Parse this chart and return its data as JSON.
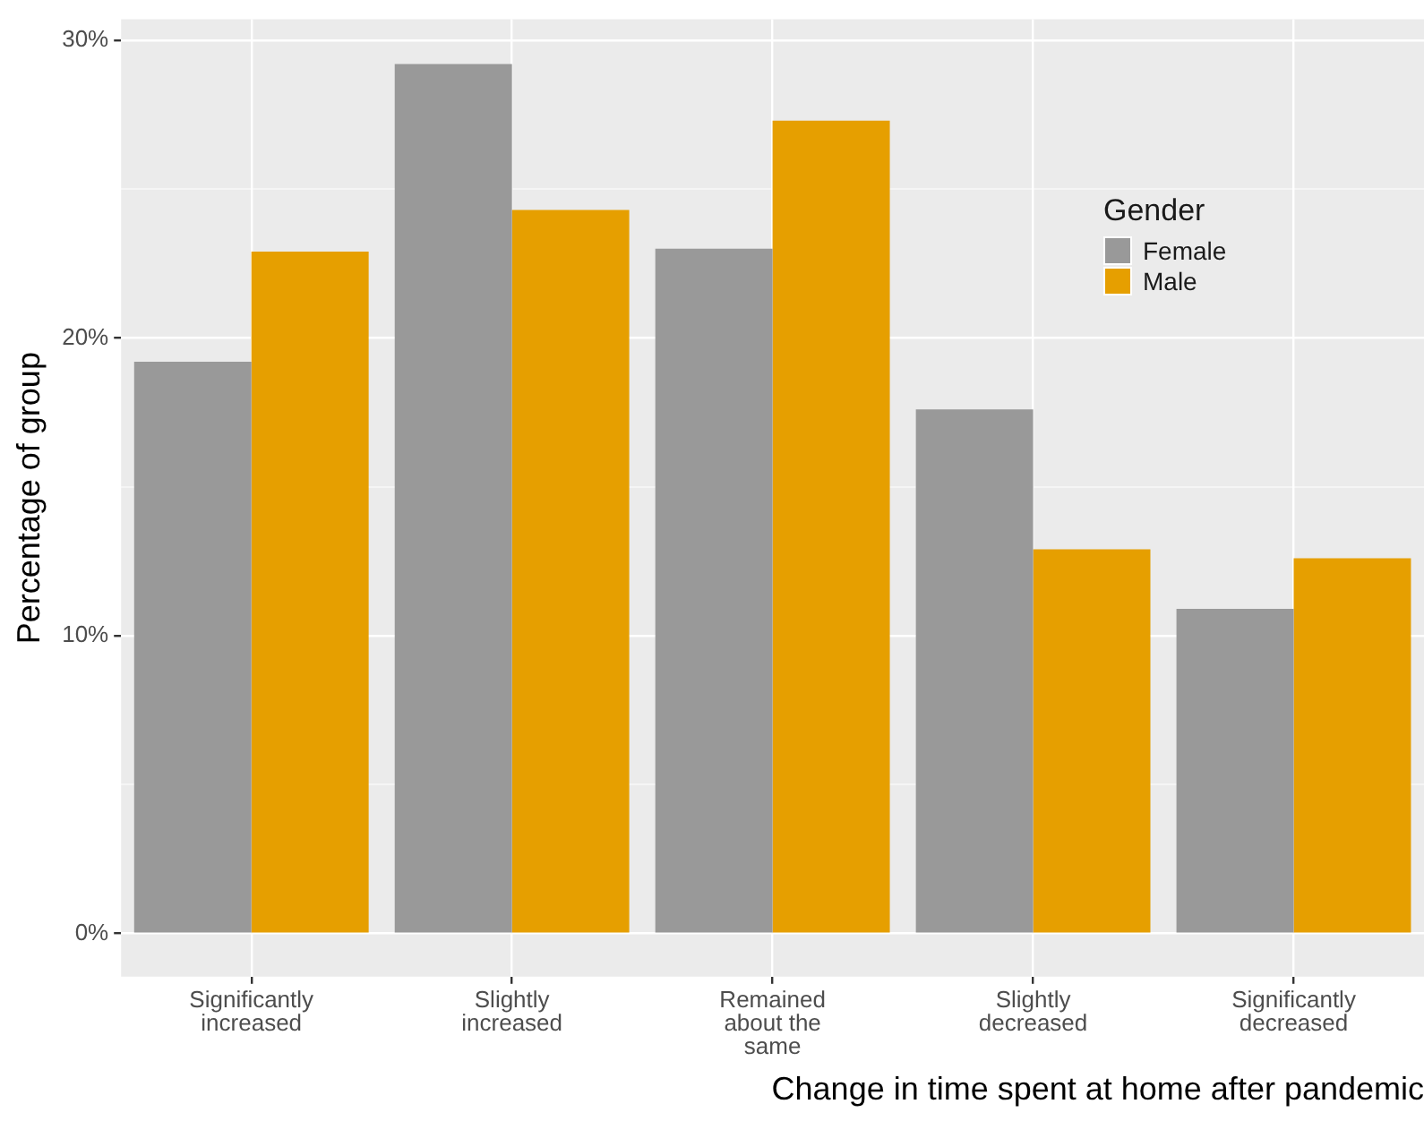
{
  "chart_data": {
    "type": "bar",
    "xlabel": "Change in time spent at home after pandemic",
    "ylabel": "Percentage of group",
    "legend_title": "Gender",
    "categories": [
      "Significantly increased",
      "Slightly increased",
      "Remained about the same",
      "Slightly decreased",
      "Significantly decreased"
    ],
    "series": [
      {
        "name": "Female",
        "color": "#999999",
        "values": [
          19.2,
          29.2,
          23.0,
          17.6,
          10.9
        ]
      },
      {
        "name": "Male",
        "color": "#e69f00",
        "values": [
          22.9,
          24.3,
          27.3,
          12.9,
          12.6
        ]
      }
    ],
    "ylim": [
      -1.45,
      30.7
    ],
    "yticks": [
      {
        "value": 0,
        "label": "0%"
      },
      {
        "value": 5,
        "label": null
      },
      {
        "value": 10,
        "label": "10%"
      },
      {
        "value": 15,
        "label": null
      },
      {
        "value": 20,
        "label": "20%"
      },
      {
        "value": 25,
        "label": null
      },
      {
        "value": 30,
        "label": "30%"
      }
    ],
    "grid": true,
    "legend": "top right"
  }
}
